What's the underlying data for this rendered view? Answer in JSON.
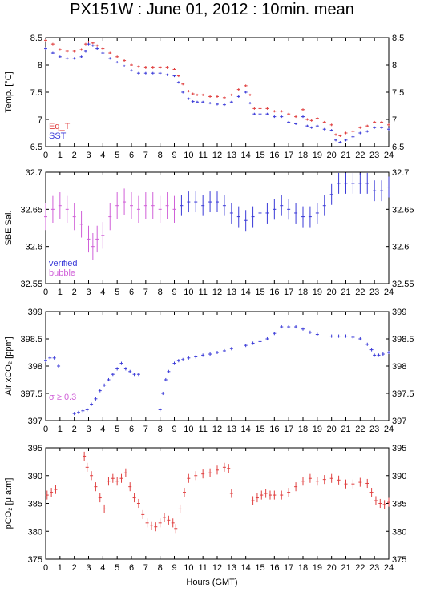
{
  "title": "PX151W : June 01, 2012 : 10min. mean",
  "xlabel": "Hours (GMT)",
  "colors": {
    "red": "#e04040",
    "blue": "#3a3ad8",
    "magenta": "#d060d8",
    "frame": "#000000"
  },
  "chart_data": [
    {
      "type": "scatter",
      "ylabel": "Temp. [°C]",
      "ylim": [
        6.5,
        8.5
      ],
      "yticks": [
        6.5,
        7,
        7.5,
        8,
        8.5
      ],
      "ytick_labels": [
        "6.5",
        "7",
        "7.5",
        "8",
        "8.5"
      ],
      "xlim": [
        0,
        24
      ],
      "xticks": [
        0,
        1,
        2,
        3,
        4,
        5,
        6,
        7,
        8,
        9,
        10,
        11,
        12,
        13,
        14,
        15,
        16,
        17,
        18,
        19,
        20,
        21,
        22,
        23,
        24
      ],
      "legend": [
        {
          "name": "Eq_T",
          "color": "#e04040"
        },
        {
          "name": "SST",
          "color": "#3a3ad8"
        }
      ],
      "series": [
        {
          "name": "Eq_T",
          "color": "#e04040",
          "error": false,
          "x": [
            0,
            0.5,
            1,
            1.5,
            2,
            2.5,
            2.8,
            3,
            3.3,
            3.6,
            4,
            4.5,
            5,
            5.5,
            6,
            6.5,
            7,
            7.5,
            8,
            8.5,
            9,
            9.3,
            9.6,
            10,
            10.3,
            10.6,
            11,
            11.5,
            12,
            12.5,
            13,
            13.5,
            14,
            14.3,
            14.6,
            15,
            15.5,
            16,
            16.5,
            17,
            17.5,
            18,
            18.3,
            18.6,
            19,
            19.5,
            20,
            20.3,
            20.6,
            21,
            21.5,
            22,
            22.5,
            23,
            23.5,
            24
          ],
          "y": [
            8.45,
            8.38,
            8.28,
            8.25,
            8.25,
            8.28,
            8.38,
            8.42,
            8.4,
            8.35,
            8.3,
            8.22,
            8.15,
            8.08,
            8.0,
            7.97,
            7.95,
            7.95,
            7.95,
            7.95,
            7.92,
            7.8,
            7.65,
            7.52,
            7.47,
            7.45,
            7.45,
            7.42,
            7.42,
            7.4,
            7.45,
            7.55,
            7.62,
            7.45,
            7.2,
            7.2,
            7.2,
            7.15,
            7.15,
            7.1,
            7.05,
            7.18,
            7.0,
            6.98,
            7.02,
            6.95,
            6.9,
            6.72,
            6.7,
            6.75,
            6.78,
            6.85,
            6.88,
            6.95,
            6.95,
            6.9
          ]
        },
        {
          "name": "SST",
          "color": "#3a3ad8",
          "error": false,
          "x": [
            0,
            0.5,
            1,
            1.5,
            2,
            2.5,
            2.8,
            3,
            3.3,
            3.6,
            4,
            4.5,
            5,
            5.5,
            6,
            6.5,
            7,
            7.5,
            8,
            8.5,
            9,
            9.3,
            9.6,
            10,
            10.3,
            10.6,
            11,
            11.5,
            12,
            12.5,
            13,
            13.5,
            14,
            14.3,
            14.6,
            15,
            15.5,
            16,
            16.5,
            17,
            17.5,
            18,
            18.3,
            18.6,
            19,
            19.5,
            20,
            20.3,
            20.6,
            21,
            21.5,
            22,
            22.5,
            23,
            23.5,
            24
          ],
          "y": [
            8.3,
            8.22,
            8.15,
            8.12,
            8.12,
            8.15,
            8.25,
            8.38,
            8.35,
            8.3,
            8.22,
            8.12,
            8.05,
            7.98,
            7.9,
            7.85,
            7.85,
            7.85,
            7.85,
            7.82,
            7.8,
            7.68,
            7.5,
            7.38,
            7.33,
            7.32,
            7.32,
            7.3,
            7.28,
            7.27,
            7.32,
            7.42,
            7.5,
            7.3,
            7.1,
            7.1,
            7.1,
            7.05,
            7.05,
            6.95,
            6.92,
            7.05,
            6.88,
            6.85,
            6.88,
            6.82,
            6.8,
            6.62,
            6.58,
            6.62,
            6.68,
            6.75,
            6.78,
            6.85,
            6.85,
            6.82
          ]
        }
      ]
    },
    {
      "type": "scatter",
      "ylabel": "SBE Sal.",
      "ylim": [
        32.55,
        32.7
      ],
      "yticks": [
        32.55,
        32.6,
        32.65,
        32.7
      ],
      "ytick_labels": [
        "32.55",
        "32.6",
        "32.65",
        "32.7"
      ],
      "xlim": [
        0,
        24
      ],
      "xticks": [
        0,
        1,
        2,
        3,
        4,
        5,
        6,
        7,
        8,
        9,
        10,
        11,
        12,
        13,
        14,
        15,
        16,
        17,
        18,
        19,
        20,
        21,
        22,
        23,
        24
      ],
      "legend": [
        {
          "name": "verified",
          "color": "#3a3ad8"
        },
        {
          "name": "bubble",
          "color": "#d060d8"
        }
      ],
      "series": [
        {
          "name": "bubble",
          "color": "#d060d8",
          "error": true,
          "err": 0.018,
          "x": [
            0,
            0.5,
            1,
            1.5,
            2,
            2.5,
            3,
            3.3,
            3.6,
            4,
            4.5,
            5,
            5.5,
            6,
            6.5,
            7,
            7.5,
            8,
            8.5,
            9
          ],
          "y": [
            32.64,
            32.65,
            32.655,
            32.65,
            32.64,
            32.63,
            32.61,
            32.6,
            32.61,
            32.615,
            32.64,
            32.655,
            32.66,
            32.655,
            32.65,
            32.655,
            32.655,
            32.65,
            32.655,
            32.65
          ]
        },
        {
          "name": "verified",
          "color": "#3a3ad8",
          "error": true,
          "err": 0.014,
          "x": [
            9.5,
            10,
            10.5,
            11,
            11.5,
            12,
            12.5,
            13,
            13.5,
            14,
            14.5,
            15,
            15.5,
            16,
            16.5,
            17,
            17.5,
            18,
            18.5,
            19,
            19.5,
            20,
            20.5,
            21,
            21.5,
            22,
            22.5,
            23,
            23.5,
            24
          ],
          "y": [
            32.655,
            32.66,
            32.66,
            32.655,
            32.66,
            32.66,
            32.655,
            32.645,
            32.64,
            32.635,
            32.64,
            32.645,
            32.645,
            32.65,
            32.655,
            32.65,
            32.645,
            32.64,
            32.64,
            32.645,
            32.655,
            32.67,
            32.685,
            32.685,
            32.685,
            32.685,
            32.685,
            32.675,
            32.675,
            32.68
          ]
        }
      ]
    },
    {
      "type": "scatter",
      "ylabel": "Air xCO₂ [ppm]",
      "ylim": [
        397,
        399
      ],
      "yticks": [
        397,
        397.5,
        398,
        398.5,
        399
      ],
      "ytick_labels": [
        "397",
        "397.5",
        "398",
        "398.5",
        "399"
      ],
      "xlim": [
        0,
        24
      ],
      "xticks": [
        0,
        1,
        2,
        3,
        4,
        5,
        6,
        7,
        8,
        9,
        10,
        11,
        12,
        13,
        14,
        15,
        16,
        17,
        18,
        19,
        20,
        21,
        22,
        23,
        24
      ],
      "annotation": "σ ≥ 0.3",
      "series": [
        {
          "name": "Air xCO2",
          "color": "#3a3ad8",
          "error": true,
          "err": 0.03,
          "x": [
            0,
            0.3,
            0.6,
            0.9,
            2,
            2.3,
            2.6,
            2.9,
            3.2,
            3.5,
            3.8,
            4.1,
            4.4,
            4.7,
            5,
            5.3,
            5.6,
            5.9,
            6.2,
            6.5,
            8,
            8.2,
            8.4,
            8.6,
            9,
            9.3,
            9.6,
            10,
            10.5,
            11,
            11.5,
            12,
            12.5,
            13,
            14,
            14.5,
            15,
            15.5,
            16,
            16.5,
            17,
            17.5,
            18,
            18.5,
            19,
            20,
            20.5,
            21,
            21.5,
            22,
            22.5,
            22.8,
            23,
            23.3,
            23.6,
            24
          ],
          "y": [
            398.1,
            398.15,
            398.15,
            398.0,
            397.13,
            397.15,
            397.18,
            397.2,
            397.3,
            397.4,
            397.55,
            397.65,
            397.75,
            397.85,
            397.95,
            398.05,
            397.95,
            397.9,
            397.85,
            397.85,
            397.2,
            397.5,
            397.75,
            397.9,
            398.05,
            398.1,
            398.12,
            398.15,
            398.17,
            398.2,
            398.22,
            398.25,
            398.28,
            398.32,
            398.38,
            398.42,
            398.45,
            398.5,
            398.6,
            398.72,
            398.72,
            398.72,
            398.68,
            398.62,
            398.58,
            398.55,
            398.55,
            398.55,
            398.53,
            398.5,
            398.4,
            398.3,
            398.2,
            398.2,
            398.22,
            398.25
          ]
        }
      ]
    },
    {
      "type": "scatter",
      "ylabel": "pCO₂ [μ atm]",
      "ylim": [
        375,
        395
      ],
      "yticks": [
        375,
        380,
        385,
        390,
        395
      ],
      "ytick_labels": [
        "375",
        "380",
        "385",
        "390",
        "395"
      ],
      "xlim": [
        0,
        24
      ],
      "xticks": [
        0,
        1,
        2,
        3,
        4,
        5,
        6,
        7,
        8,
        9,
        10,
        11,
        12,
        13,
        14,
        15,
        16,
        17,
        18,
        19,
        20,
        21,
        22,
        23,
        24
      ],
      "series": [
        {
          "name": "pCO2",
          "color": "#e04040",
          "error": true,
          "err": 0.8,
          "x": [
            0.1,
            0.4,
            0.7,
            2.7,
            2.9,
            3.2,
            3.5,
            3.8,
            4.1,
            4.4,
            4.7,
            5,
            5.3,
            5.6,
            5.9,
            6.2,
            6.5,
            6.8,
            7.1,
            7.4,
            7.7,
            8,
            8.3,
            8.6,
            8.9,
            9.1,
            9.4,
            9.7,
            10,
            10.5,
            11,
            11.5,
            12,
            12.5,
            12.8,
            13,
            14.5,
            14.8,
            15.1,
            15.4,
            15.7,
            16,
            16.5,
            17,
            17.5,
            18,
            18.5,
            19,
            19.5,
            20,
            20.5,
            21,
            21.5,
            22,
            22.5,
            22.8,
            23.1,
            23.4,
            23.7,
            24
          ],
          "y": [
            386.5,
            387,
            387.5,
            393.5,
            391.5,
            390,
            388,
            386,
            384,
            389,
            389.5,
            389,
            389.5,
            390.5,
            388,
            386,
            385,
            383,
            381.5,
            381,
            380.8,
            381.5,
            382.5,
            382,
            381.5,
            380.5,
            384,
            387,
            389.5,
            390,
            390.3,
            390.5,
            391,
            391.5,
            391.3,
            386.8,
            385.5,
            386,
            386.5,
            386.8,
            386.5,
            386.5,
            386.5,
            387,
            388,
            389,
            389.5,
            389,
            389.3,
            389.5,
            389.2,
            388.5,
            388.5,
            388.8,
            388.6,
            387,
            385.5,
            385,
            384.8,
            385.2
          ]
        }
      ]
    }
  ]
}
